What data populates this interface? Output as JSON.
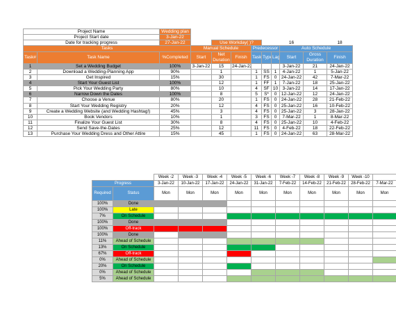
{
  "meta": {
    "rows": [
      {
        "label": "Project Name",
        "value": "Wedding plan"
      },
      {
        "label": "Project Start date",
        "value": "3-Jan-22"
      },
      {
        "label": "Date for tracking progress",
        "value": "27-Jan-22"
      }
    ],
    "workdays_label": "Use Workday( )?",
    "count_a": "16",
    "count_b": "18"
  },
  "groups": {
    "tasks": "Tasks",
    "manual": "Manual Schedule",
    "pred": "Predecessor",
    "auto": "Auto Schedule"
  },
  "columns": {
    "task_id": "Task#",
    "task_name": "Task Name",
    "completed": "%Completed",
    "start": "Start",
    "net_duration": "Net Duration",
    "finish": "Finish",
    "pred_task": "Task#",
    "type": "Type",
    "lag": "Lag",
    "auto_start": "Start",
    "gross_duration": "Gross Duration",
    "auto_finish": "Finish"
  },
  "tasks": [
    {
      "id": "1",
      "name": "Set a Wedding Budget",
      "pct": "100%",
      "start": "3-Jan-22",
      "dur": "15",
      "finish": "24-Jan-22",
      "pt": "",
      "type": "",
      "lag": "",
      "as": "3-Jan-22",
      "gd": "21",
      "af": "24-Jan-22"
    },
    {
      "id": "2",
      "name": "Download a Wedding-Planning App",
      "pct": "90%",
      "start": "",
      "dur": "1",
      "finish": "",
      "pt": "1",
      "type": "SS",
      "lag": "1",
      "as": "4-Jan-22",
      "gd": "1",
      "af": "5-Jan-22"
    },
    {
      "id": "3",
      "name": "Get Inspired",
      "pct": "15%",
      "start": "",
      "dur": "30",
      "finish": "",
      "pt": "1",
      "type": "FS",
      "lag": "0",
      "as": "24-Jan-22",
      "gd": "42",
      "af": "7-Mar-22"
    },
    {
      "id": "4",
      "name": "Start Your Guest List",
      "pct": "100%",
      "start": "",
      "dur": "12",
      "finish": "",
      "pt": "1",
      "type": "FF",
      "lag": "1",
      "as": "7-Jan-22",
      "gd": "18",
      "af": "25-Jan-22"
    },
    {
      "id": "5",
      "name": "Pick Your Wedding Party",
      "pct": "80%",
      "start": "",
      "dur": "10",
      "finish": "",
      "pt": "4",
      "type": "SF",
      "lag": "10",
      "as": "3-Jan-22",
      "gd": "14",
      "af": "17-Jan-22"
    },
    {
      "id": "6",
      "name": "Narrow Down the Dates",
      "pct": "100%",
      "start": "",
      "dur": "8",
      "finish": "",
      "pt": "5",
      "type": "S*",
      "lag": "0",
      "as": "12-Jan-22",
      "gd": "12",
      "af": "24-Jan-22"
    },
    {
      "id": "7",
      "name": "Choose a Venue",
      "pct": "80%",
      "start": "",
      "dur": "20",
      "finish": "",
      "pt": "1",
      "type": "FS",
      "lag": "0",
      "as": "24-Jan-22",
      "gd": "28",
      "af": "21-Feb-22"
    },
    {
      "id": "8",
      "name": "Start Your Wedding Registry",
      "pct": "20%",
      "start": "",
      "dur": "12",
      "finish": "",
      "pt": "4",
      "type": "FS",
      "lag": "0",
      "as": "25-Jan-22",
      "gd": "16",
      "af": "10-Feb-22"
    },
    {
      "id": "9",
      "name": "Create a Wedding Website (and Wedding Hashtag!)",
      "pct": "45%",
      "start": "",
      "dur": "3",
      "finish": "",
      "pt": "4",
      "type": "FS",
      "lag": "0",
      "as": "25-Jan-22",
      "gd": "3",
      "af": "28-Jan-22"
    },
    {
      "id": "10",
      "name": "Book Vendors",
      "pct": "10%",
      "start": "",
      "dur": "1",
      "finish": "",
      "pt": "3",
      "type": "FS",
      "lag": "0",
      "as": "7-Mar-22",
      "gd": "1",
      "af": "8-Mar-22"
    },
    {
      "id": "11",
      "name": "Finalize Your Guest List",
      "pct": "30%",
      "start": "",
      "dur": "8",
      "finish": "",
      "pt": "4",
      "type": "FS",
      "lag": "0",
      "as": "25-Jan-22",
      "gd": "10",
      "af": "4-Feb-22"
    },
    {
      "id": "12",
      "name": "Send Save-the-Dates",
      "pct": "25%",
      "start": "",
      "dur": "12",
      "finish": "",
      "pt": "11",
      "type": "FS",
      "lag": "0",
      "as": "4-Feb-22",
      "gd": "18",
      "af": "22-Feb-22"
    },
    {
      "id": "13",
      "name": "Purchase Your Wedding Dress and Other Attire",
      "pct": "15%",
      "start": "",
      "dur": "45",
      "finish": "",
      "pt": "1",
      "type": "FS",
      "lag": "0",
      "as": "24-Jan-22",
      "gd": "63",
      "af": "28-Mar-22"
    }
  ],
  "progress": {
    "title": "Progress",
    "required_label": "Required",
    "status_label": "Status",
    "rows": [
      {
        "req": "100%",
        "status": "Done",
        "cls": "Done"
      },
      {
        "req": "100%",
        "status": "Late",
        "cls": "Late"
      },
      {
        "req": "7%",
        "status": "On Schedule",
        "cls": "OnSchedule"
      },
      {
        "req": "100%",
        "status": "Done",
        "cls": "Done"
      },
      {
        "req": "100%",
        "status": "Off-track",
        "cls": "OffTrack"
      },
      {
        "req": "100%",
        "status": "Done",
        "cls": "Done"
      },
      {
        "req": "11%",
        "status": "Ahead of Schedule",
        "cls": "Ahead"
      },
      {
        "req": "13%",
        "status": "On Schedule",
        "cls": "OnSchedule"
      },
      {
        "req": "67%",
        "status": "Off-track",
        "cls": "OffTrack"
      },
      {
        "req": "0%",
        "status": "Ahead of Schedule",
        "cls": "Ahead"
      },
      {
        "req": "20%",
        "status": "On Schedule",
        "cls": "OnSchedule"
      },
      {
        "req": "0%",
        "status": "Ahead of Schedule",
        "cls": "Ahead"
      },
      {
        "req": "5%",
        "status": "Ahead of Schedule",
        "cls": "Ahead"
      }
    ]
  },
  "weeks": [
    {
      "label": "Week -2",
      "date": "3-Jan-22",
      "day": "Mon"
    },
    {
      "label": "Week -3",
      "date": "10-Jan-22",
      "day": "Mon"
    },
    {
      "label": "Week -4",
      "date": "17-Jan-22",
      "day": "Mon"
    },
    {
      "label": "Week -5",
      "date": "24-Jan-22",
      "day": "Mon"
    },
    {
      "label": "Week -6",
      "date": "31-Jan-22",
      "day": "Mon"
    },
    {
      "label": "Week -7",
      "date": "7-Feb-22",
      "day": "Mon"
    },
    {
      "label": "Week -8",
      "date": "14-Feb-22",
      "day": "Mon"
    },
    {
      "label": "Week -9",
      "date": "21-Feb-22",
      "day": "Mon"
    },
    {
      "label": "Week -10",
      "date": "28-Feb-22",
      "day": "Mon"
    },
    {
      "label": "",
      "date": "7-Mar-22",
      "day": "Mon"
    }
  ],
  "gantt": [
    [
      "g-gray",
      "g-gray",
      "g-gray",
      "",
      "",
      "",
      "",
      "",
      "",
      ""
    ],
    [
      "",
      "",
      "",
      "",
      "",
      "",
      "",
      "",
      "",
      ""
    ],
    [
      "",
      "",
      "",
      "g-dark",
      "g-dark",
      "g-dark",
      "g-dark",
      "g-dark",
      "g-dark",
      "g-dark"
    ],
    [
      "g-gray",
      "g-gray",
      "g-gray",
      "",
      "",
      "",
      "",
      "",
      "",
      ""
    ],
    [
      "g-red",
      "g-red",
      "g-red",
      "",
      "",
      "",
      "",
      "",
      "",
      ""
    ],
    [
      "",
      "g-gray",
      "g-gray",
      "",
      "",
      "",
      "",
      "",
      "",
      ""
    ],
    [
      "",
      "",
      "",
      "g-light",
      "g-light",
      "g-light",
      "g-light",
      "",
      "",
      ""
    ],
    [
      "",
      "",
      "",
      "g-dark",
      "g-dark",
      "",
      "",
      "",
      "",
      ""
    ],
    [
      "",
      "",
      "",
      "g-red",
      "",
      "",
      "",
      "",
      "",
      ""
    ],
    [
      "",
      "",
      "",
      "",
      "",
      "",
      "",
      "",
      "",
      "g-light"
    ],
    [
      "",
      "",
      "",
      "g-dark",
      "",
      "",
      "",
      "",
      "",
      ""
    ],
    [
      "",
      "",
      "",
      "",
      "g-light",
      "g-light",
      "g-light",
      "",
      "",
      ""
    ],
    [
      "",
      "",
      "",
      "g-light",
      "g-light",
      "g-light",
      "g-light",
      "g-light",
      "g-light",
      "g-light"
    ]
  ]
}
